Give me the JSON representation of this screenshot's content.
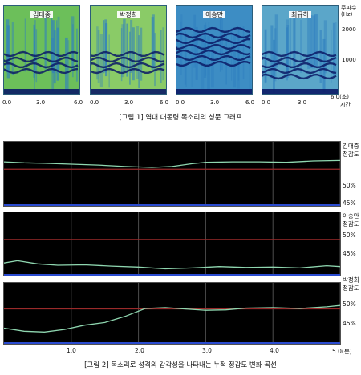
{
  "chart_data": [
    {
      "type": "heatmap",
      "title": "[그림 1] 역대 대통령 목소리의 성문 그래프",
      "panels": [
        {
          "name": "김대중",
          "x_ticks": [
            "0.0",
            "3.0",
            "6.0"
          ]
        },
        {
          "name": "박정희",
          "x_ticks": [
            "0.0",
            "3.0",
            "6.0"
          ]
        },
        {
          "name": "이승만",
          "x_ticks": [
            "0.0",
            "3.0",
            "6.0"
          ]
        },
        {
          "name": "최규하",
          "x_ticks": [
            "0.0",
            "3.0",
            "6.0(초)"
          ]
        }
      ],
      "xlabel": "시간",
      "ylabel": "주파수 (Hz)",
      "y_ticks": [
        "2000",
        "1000"
      ],
      "ylim": [
        0,
        2500
      ],
      "colors": {
        "low": "#7dc85a",
        "mid": "#2f7fbf",
        "high": "#0a1a66"
      }
    },
    {
      "type": "line",
      "title": "[그림 2] 목소리로 성격의 감각성을 나타내는 누적 정감도 변화 곡선",
      "xlabel": "5.0(분)",
      "x_ticks": [
        "1.0",
        "2.0",
        "3.0",
        "4.0",
        "5.0(분)"
      ],
      "xlim": [
        0,
        5.0
      ],
      "ylim": [
        42,
        56
      ],
      "reference_line": 50,
      "colors": {
        "background": "#000000",
        "line": "#8fd7b0",
        "reference": "#9a2a2a",
        "grid": "#4d4d4d"
      },
      "series": [
        {
          "name": "김대중",
          "label_lines": [
            "김대중",
            "정감도"
          ],
          "y_ticks": [
            "50%",
            "45%"
          ],
          "x": [
            0.0,
            0.3,
            0.6,
            1.0,
            1.4,
            1.8,
            2.2,
            2.5,
            2.8,
            3.0,
            3.4,
            3.8,
            4.2,
            4.6,
            5.0
          ],
          "y": [
            51.6,
            51.4,
            51.3,
            51.1,
            50.9,
            50.6,
            50.4,
            50.6,
            51.2,
            51.5,
            51.6,
            51.6,
            51.5,
            51.8,
            51.9
          ]
        },
        {
          "name": "이승만",
          "label_lines": [
            "이승만",
            "정감도"
          ],
          "y_ticks": [
            "50%",
            "45%"
          ],
          "x": [
            0.0,
            0.2,
            0.5,
            0.8,
            1.2,
            1.6,
            2.0,
            2.4,
            2.8,
            3.2,
            3.6,
            4.0,
            4.4,
            4.8,
            5.0
          ],
          "y": [
            44.8,
            45.3,
            44.6,
            44.3,
            44.4,
            44.1,
            43.9,
            43.5,
            43.7,
            44.0,
            43.8,
            43.9,
            43.7,
            44.2,
            44.0
          ]
        },
        {
          "name": "박정희",
          "label_lines": [
            "박정희",
            "정감도"
          ],
          "y_ticks": [
            "50%",
            "45%"
          ],
          "x": [
            0.0,
            0.3,
            0.6,
            0.9,
            1.2,
            1.5,
            1.8,
            2.1,
            2.4,
            2.7,
            3.0,
            3.3,
            3.6,
            4.0,
            4.4,
            4.8,
            5.0
          ],
          "y": [
            45.6,
            44.9,
            44.7,
            45.3,
            46.3,
            46.9,
            48.3,
            50.1,
            50.3,
            50.0,
            49.7,
            49.8,
            50.2,
            50.3,
            50.1,
            50.5,
            50.8
          ]
        }
      ]
    }
  ]
}
